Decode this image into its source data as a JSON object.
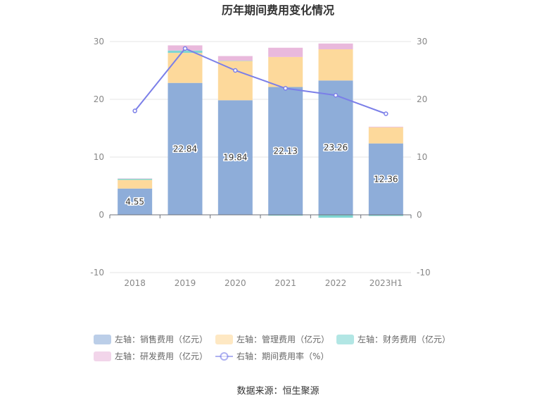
{
  "chart_data": {
    "type": "bar",
    "title": "历年期间费用变化情况",
    "categories": [
      "2018",
      "2019",
      "2020",
      "2021",
      "2022",
      "2023H1"
    ],
    "left_axis": {
      "ylim": [
        -10,
        30
      ],
      "ticks": [
        30,
        20,
        10,
        0,
        -10
      ]
    },
    "right_axis": {
      "ylim": [
        -10,
        30
      ],
      "ticks": [
        30,
        20,
        10,
        0,
        -10
      ]
    },
    "series": [
      {
        "name": "左轴：销售费用（亿元）",
        "type": "bar",
        "color": "#8eadd9",
        "values": [
          4.55,
          22.84,
          19.84,
          22.13,
          23.26,
          12.36
        ],
        "labels": [
          "4.55",
          "22.84",
          "19.84",
          "22.13",
          "23.26",
          "12.36"
        ]
      },
      {
        "name": "左轴：管理费用（亿元）",
        "type": "bar",
        "color": "#fdd99b",
        "values": [
          1.5,
          5.2,
          6.8,
          5.2,
          5.4,
          2.8
        ]
      },
      {
        "name": "左轴：财务费用（亿元）",
        "type": "bar",
        "color": "#7fd6d2",
        "values": [
          0.2,
          0.4,
          0.05,
          -0.15,
          -0.5,
          -0.2
        ]
      },
      {
        "name": "左轴：研发费用（亿元）",
        "type": "bar",
        "color": "#e9b9dc",
        "values": [
          0.05,
          0.9,
          0.8,
          1.6,
          1.0,
          0.1
        ]
      },
      {
        "name": "右轴：期间费用率（%）",
        "type": "line",
        "color": "#7b7fe8",
        "values": [
          18.0,
          28.8,
          25.0,
          21.9,
          20.7,
          17.5
        ]
      }
    ]
  },
  "source": "数据来源：恒生聚源"
}
